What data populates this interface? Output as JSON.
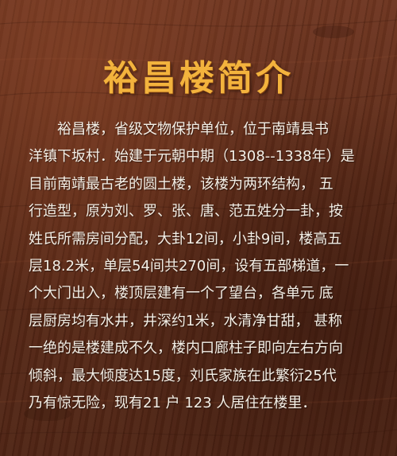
{
  "sign": {
    "title": "裕昌楼简介",
    "lines": [
      "裕昌楼，省级文物保护单位，位于南靖县书",
      "洋镇下坂村．始建于元朝中期（1308--1338年）是",
      "目前南靖最古老的圆土楼，该楼为两环结构， 五",
      "行造型，原为刘、罗、张、唐、范五姓分一卦，按",
      "姓氏所需房间分配，大卦12间，小卦9间，楼高五",
      "层18.2米，单层54间共270间，设有五部梯道，一",
      "个大门出入，楼顶层建有一个了望台，各单元 底",
      "层厨房均有水井，井深约1米，水清净甘甜， 甚称",
      "一绝的是楼建成不久，楼内口廊柱子即向左右方向",
      "倾斜，最大倾度达15度，刘氏家族在此繁衍25代",
      "乃有惊无险，现有21 户 123 人居住在楼里．"
    ]
  },
  "colors": {
    "wood": "#5c2a17",
    "title": "#f3b33d",
    "text": "#f4efe6"
  }
}
